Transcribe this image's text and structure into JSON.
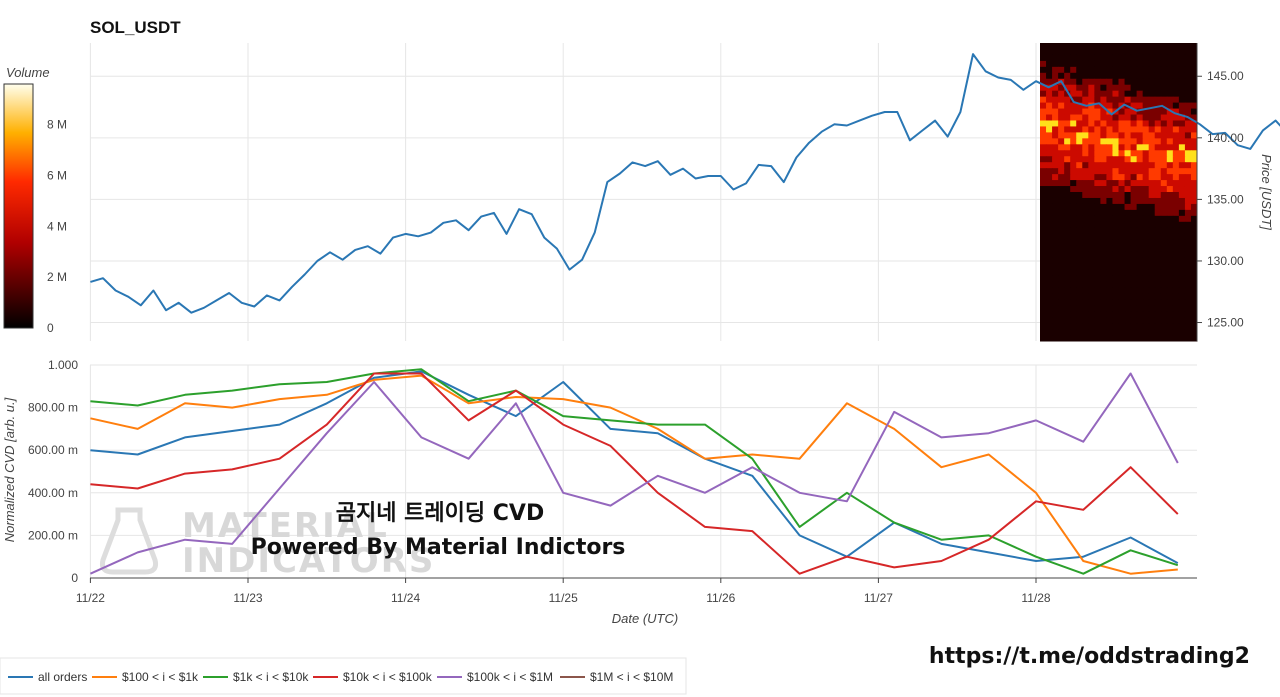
{
  "chart_data": [
    {
      "type": "line",
      "title": "SOL_USDT",
      "ylabel": "Price [USDT]",
      "ylim": [
        123.5,
        147.7
      ],
      "yticks": [
        "125.00",
        "130.00",
        "135.00",
        "140.00",
        "145.00"
      ],
      "series": [
        {
          "name": "SOL_USDT price",
          "color": "#2a77b4",
          "x": [
            0,
            0.08,
            0.16,
            0.24,
            0.32,
            0.4,
            0.48,
            0.56,
            0.64,
            0.72,
            0.8,
            0.88,
            0.96,
            1.04,
            1.12,
            1.2,
            1.28,
            1.36,
            1.44,
            1.52,
            1.6,
            1.68,
            1.76,
            1.84,
            1.92,
            2.0,
            2.08,
            2.16,
            2.24,
            2.32,
            2.4,
            2.48,
            2.56,
            2.64,
            2.72,
            2.8,
            2.88,
            2.96,
            3.04,
            3.12,
            3.2,
            3.28,
            3.36,
            3.44,
            3.52,
            3.6,
            3.68,
            3.76,
            3.84,
            3.92,
            4.0,
            4.08,
            4.16,
            4.24,
            4.32,
            4.4,
            4.48,
            4.56,
            4.64,
            4.72,
            4.8,
            4.88,
            4.96,
            5.04,
            5.12,
            5.2,
            5.28,
            5.36,
            5.44,
            5.52,
            5.6,
            5.68,
            5.76,
            5.84,
            5.92,
            6.0,
            6.08,
            6.16,
            6.24,
            6.32,
            6.4,
            6.48,
            6.56,
            6.64,
            6.72,
            6.8,
            6.88,
            6.96,
            7.04,
            7.12,
            7.2,
            7.28,
            7.36,
            7.44,
            7.52,
            7.6,
            7.68,
            7.76,
            7.84,
            7.92,
            8.0
          ],
          "y": [
            128.3,
            128.6,
            127.6,
            127.1,
            126.4,
            127.6,
            126.0,
            126.6,
            125.8,
            126.2,
            126.8,
            127.4,
            126.6,
            126.3,
            127.2,
            126.8,
            127.9,
            128.9,
            130.0,
            130.7,
            130.1,
            130.9,
            131.2,
            130.6,
            131.9,
            132.2,
            132.0,
            132.3,
            133.1,
            133.3,
            132.5,
            133.6,
            133.9,
            132.2,
            134.2,
            133.8,
            131.9,
            131.0,
            129.3,
            130.1,
            132.3,
            136.4,
            137.1,
            138.0,
            137.7,
            138.1,
            137.0,
            137.5,
            136.7,
            136.9,
            136.9,
            135.8,
            136.3,
            137.8,
            137.7,
            136.4,
            138.4,
            139.6,
            140.5,
            141.1,
            141.0,
            141.4,
            141.8,
            142.1,
            142.1,
            139.8,
            140.6,
            141.4,
            140.1,
            142.1,
            146.8,
            145.4,
            144.9,
            144.7,
            143.9,
            144.6,
            144.1,
            144.6,
            142.9,
            142.6,
            142.8,
            141.9,
            142.7,
            142.2,
            142.4,
            142.6,
            142.0,
            141.7,
            141.1,
            140.3,
            140.4,
            139.4,
            139.1,
            140.6,
            141.4,
            140.3,
            139.5,
            138.9,
            140.1,
            139.7,
            140.0
          ]
        }
      ]
    },
    {
      "type": "line",
      "xlabel": "Date (UTC)",
      "ylabel": "Normalized CVD [arb. u.]",
      "ylim": [
        0,
        1.0
      ],
      "yticks": [
        "0",
        "200.00 m",
        "400.00 m",
        "600.00 m",
        "800.00 m",
        "1.000"
      ],
      "categories": [
        "11/22",
        "11/23",
        "11/24",
        "11/25",
        "11/26",
        "11/27",
        "11/28"
      ],
      "series": [
        {
          "name": "all orders",
          "color": "#2a77b4",
          "x": [
            0,
            0.3,
            0.6,
            0.9,
            1.2,
            1.5,
            1.8,
            2.1,
            2.4,
            2.7,
            3.0,
            3.3,
            3.6,
            3.9,
            4.2,
            4.5,
            4.8,
            5.1,
            5.4,
            5.7,
            6.0,
            6.3,
            6.6,
            6.9
          ],
          "y": [
            0.6,
            0.58,
            0.66,
            0.69,
            0.72,
            0.82,
            0.94,
            0.97,
            0.86,
            0.76,
            0.92,
            0.7,
            0.68,
            0.56,
            0.48,
            0.2,
            0.1,
            0.26,
            0.16,
            0.12,
            0.08,
            0.1,
            0.19,
            0.07
          ]
        },
        {
          "name": "$100 < i < $1k",
          "color": "#ff7f0e",
          "x": [
            0,
            0.3,
            0.6,
            0.9,
            1.2,
            1.5,
            1.8,
            2.1,
            2.4,
            2.7,
            3.0,
            3.3,
            3.6,
            3.9,
            4.2,
            4.5,
            4.8,
            5.1,
            5.4,
            5.7,
            6.0,
            6.3,
            6.6,
            6.9
          ],
          "y": [
            0.75,
            0.7,
            0.82,
            0.8,
            0.84,
            0.86,
            0.93,
            0.95,
            0.82,
            0.85,
            0.84,
            0.8,
            0.7,
            0.56,
            0.58,
            0.56,
            0.82,
            0.7,
            0.52,
            0.58,
            0.4,
            0.08,
            0.02,
            0.04
          ]
        },
        {
          "name": "$1k < i < $10k",
          "color": "#2ca02c",
          "x": [
            0,
            0.3,
            0.6,
            0.9,
            1.2,
            1.5,
            1.8,
            2.1,
            2.4,
            2.7,
            3.0,
            3.3,
            3.6,
            3.9,
            4.2,
            4.5,
            4.8,
            5.1,
            5.4,
            5.7,
            6.0,
            6.3,
            6.6,
            6.9
          ],
          "y": [
            0.83,
            0.81,
            0.86,
            0.88,
            0.91,
            0.92,
            0.96,
            0.98,
            0.83,
            0.88,
            0.76,
            0.74,
            0.72,
            0.72,
            0.56,
            0.24,
            0.4,
            0.26,
            0.18,
            0.2,
            0.1,
            0.02,
            0.13,
            0.06
          ]
        },
        {
          "name": "$10k < i < $100k",
          "color": "#d62728",
          "x": [
            0,
            0.3,
            0.6,
            0.9,
            1.2,
            1.5,
            1.8,
            2.1,
            2.4,
            2.7,
            3.0,
            3.3,
            3.6,
            3.9,
            4.2,
            4.5,
            4.8,
            5.1,
            5.4,
            5.7,
            6.0,
            6.3,
            6.6,
            6.9
          ],
          "y": [
            0.44,
            0.42,
            0.49,
            0.51,
            0.56,
            0.72,
            0.96,
            0.96,
            0.74,
            0.88,
            0.72,
            0.62,
            0.4,
            0.24,
            0.22,
            0.02,
            0.1,
            0.05,
            0.08,
            0.18,
            0.36,
            0.32,
            0.52,
            0.3
          ]
        },
        {
          "name": "$100k < i < $1M",
          "color": "#9467bd",
          "x": [
            0,
            0.3,
            0.6,
            0.9,
            1.2,
            1.5,
            1.8,
            2.1,
            2.4,
            2.7,
            3.0,
            3.3,
            3.6,
            3.9,
            4.2,
            4.5,
            4.8,
            5.1,
            5.4,
            5.7,
            6.0,
            6.3,
            6.6,
            6.9
          ],
          "y": [
            0.02,
            0.12,
            0.18,
            0.16,
            0.42,
            0.68,
            0.92,
            0.66,
            0.56,
            0.82,
            0.4,
            0.34,
            0.48,
            0.4,
            0.52,
            0.4,
            0.36,
            0.78,
            0.66,
            0.68,
            0.74,
            0.64,
            0.96,
            0.54
          ]
        },
        {
          "name": "$1M < i < $10M",
          "color": "#8c564b",
          "x": [],
          "y": []
        }
      ]
    }
  ],
  "overlay": {
    "line1": "곰지네 트레이딩 CVD",
    "line2": "Powered By Material Indictors",
    "watermark_line1": "MATERIAL",
    "watermark_line2": "INDICATORS",
    "link": "https://t.me/oddstrading2"
  },
  "colorbar": {
    "title": "Volume",
    "ticks": [
      "0",
      "2 M",
      "4 M",
      "6 M",
      "8 M"
    ]
  },
  "colors": {
    "heatmap_dark": "#1a0000",
    "heatmap_red": "#cc0a00",
    "heatmap_yellow": "#ffe01a",
    "grid": "#e6e6e6"
  }
}
